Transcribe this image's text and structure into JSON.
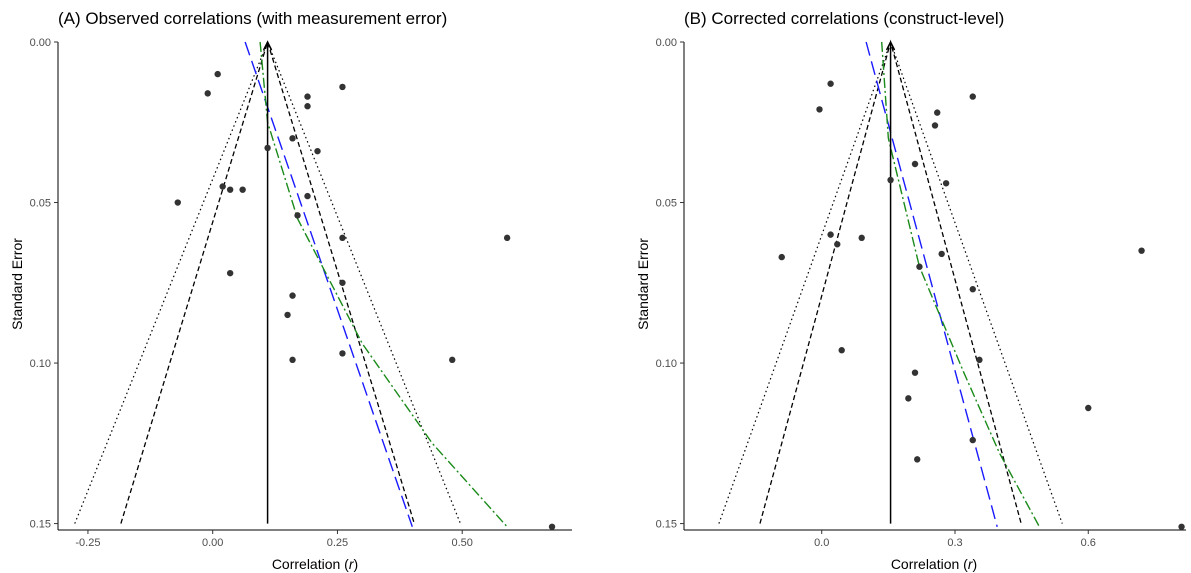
{
  "chart_data": [
    {
      "type": "scatter",
      "title": "(A) Observed correlations (with measurement error)",
      "xlabel_prefix": "Correlation (",
      "xlabel_var": "r",
      "xlabel_suffix": ")",
      "ylabel": "Standard Error",
      "xlim": [
        -0.31,
        0.72
      ],
      "ylim": [
        0.0,
        0.152
      ],
      "y_reversed": true,
      "xticks": [
        -0.25,
        0.0,
        0.25,
        0.5
      ],
      "xtick_labels": [
        "-0.25",
        "0.00",
        "0.25",
        "0.50"
      ],
      "yticks": [
        0.0,
        0.05,
        0.1,
        0.15
      ],
      "ytick_labels": [
        "0.00",
        "0.05",
        "0.10",
        "0.15"
      ],
      "grid": false,
      "estimate": 0.11,
      "points": [
        [
          0.01,
          0.01
        ],
        [
          -0.01,
          0.016
        ],
        [
          0.26,
          0.014
        ],
        [
          0.19,
          0.017
        ],
        [
          0.19,
          0.02
        ],
        [
          0.16,
          0.03
        ],
        [
          0.11,
          0.033
        ],
        [
          0.21,
          0.034
        ],
        [
          0.02,
          0.045
        ],
        [
          0.035,
          0.046
        ],
        [
          0.06,
          0.046
        ],
        [
          0.19,
          0.048
        ],
        [
          -0.07,
          0.05
        ],
        [
          0.17,
          0.054
        ],
        [
          0.26,
          0.061
        ],
        [
          0.59,
          0.061
        ],
        [
          0.035,
          0.072
        ],
        [
          0.26,
          0.075
        ],
        [
          0.16,
          0.079
        ],
        [
          0.15,
          0.085
        ],
        [
          0.26,
          0.097
        ],
        [
          0.16,
          0.099
        ],
        [
          0.48,
          0.099
        ],
        [
          0.68,
          0.151
        ]
      ],
      "funnel_95": {
        "se_range": [
          0.0,
          0.15
        ],
        "multiplier": 1.96
      },
      "funnel_99": {
        "se_range": [
          0.0,
          0.15
        ],
        "multiplier": 2.576
      },
      "blue_regression": [
        [
          0.065,
          0.0
        ],
        [
          0.4,
          0.151
        ]
      ],
      "green_regression": [
        [
          0.095,
          0.0
        ],
        [
          0.11,
          0.025
        ],
        [
          0.17,
          0.055
        ],
        [
          0.3,
          0.094
        ],
        [
          0.44,
          0.125
        ],
        [
          0.59,
          0.151
        ]
      ]
    },
    {
      "type": "scatter",
      "title": "(B) Corrected correlations (construct-level)",
      "xlabel_prefix": "Correlation (",
      "xlabel_var": "r",
      "xlabel_suffix": ")",
      "ylabel": "Standard Error",
      "xlim": [
        -0.31,
        0.82
      ],
      "ylim": [
        0.0,
        0.152
      ],
      "y_reversed": true,
      "xticks": [
        0.0,
        0.3,
        0.6
      ],
      "xtick_labels": [
        "0.0",
        "0.3",
        "0.6"
      ],
      "yticks": [
        0.0,
        0.05,
        0.1,
        0.15
      ],
      "ytick_labels": [
        "0.00",
        "0.05",
        "0.10",
        "0.15"
      ],
      "grid": false,
      "estimate": 0.155,
      "points": [
        [
          0.02,
          0.013
        ],
        [
          0.34,
          0.017
        ],
        [
          -0.005,
          0.021
        ],
        [
          0.26,
          0.022
        ],
        [
          0.255,
          0.026
        ],
        [
          0.21,
          0.038
        ],
        [
          0.155,
          0.043
        ],
        [
          0.28,
          0.044
        ],
        [
          0.02,
          0.06
        ],
        [
          0.09,
          0.061
        ],
        [
          0.035,
          0.063
        ],
        [
          -0.09,
          0.067
        ],
        [
          0.27,
          0.066
        ],
        [
          0.72,
          0.065
        ],
        [
          0.22,
          0.07
        ],
        [
          0.34,
          0.077
        ],
        [
          0.045,
          0.096
        ],
        [
          0.355,
          0.099
        ],
        [
          0.21,
          0.103
        ],
        [
          0.195,
          0.111
        ],
        [
          0.6,
          0.114
        ],
        [
          0.34,
          0.124
        ],
        [
          0.215,
          0.13
        ],
        [
          0.81,
          0.151
        ]
      ],
      "funnel_95": {
        "se_range": [
          0.0,
          0.15
        ],
        "multiplier": 1.96
      },
      "funnel_99": {
        "se_range": [
          0.0,
          0.15
        ],
        "multiplier": 2.576
      },
      "blue_regression": [
        [
          0.1,
          0.0
        ],
        [
          0.395,
          0.151
        ]
      ],
      "green_regression": [
        [
          0.135,
          0.0
        ],
        [
          0.15,
          0.03
        ],
        [
          0.22,
          0.07
        ],
        [
          0.32,
          0.103
        ],
        [
          0.4,
          0.128
        ],
        [
          0.49,
          0.151
        ]
      ]
    }
  ]
}
